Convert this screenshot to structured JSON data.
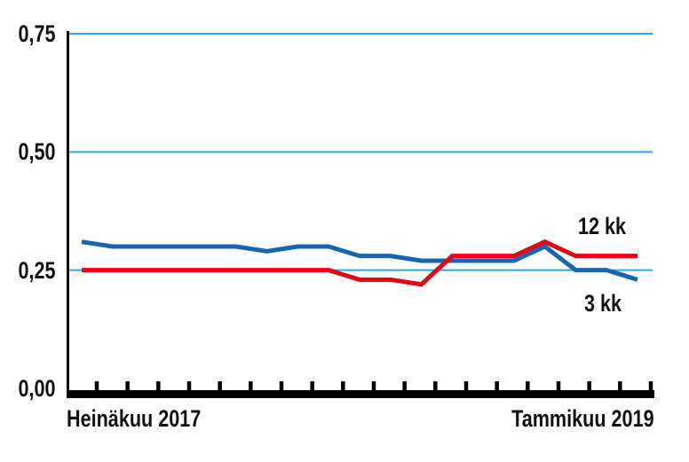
{
  "chart_data": {
    "type": "line",
    "title": "",
    "x": [
      "2017-07",
      "2017-08",
      "2017-09",
      "2017-10",
      "2017-11",
      "2017-12",
      "2018-01",
      "2018-02",
      "2018-03",
      "2018-04",
      "2018-05",
      "2018-06",
      "2018-07",
      "2018-08",
      "2018-09",
      "2018-10",
      "2018-11",
      "2018-12",
      "2019-01"
    ],
    "x_axis_labels": {
      "left": "Heinäkuu 2017",
      "right": "Tammikuu 2019"
    },
    "y_ticks": [
      0,
      0.25,
      0.5,
      0.75
    ],
    "y_tick_labels": [
      "0,00",
      "0,25",
      "0,50",
      "0,75"
    ],
    "ylim": [
      0,
      0.78
    ],
    "grid": "horizontal-only",
    "gridlines": {
      "values": [
        0.25,
        0.5,
        0.75
      ],
      "color": "#2fa9e3"
    },
    "axis_color": "#000000",
    "legend_position": "inline-right-annotations",
    "series": [
      {
        "name": "12 kk",
        "color": "#e30613",
        "values": [
          0.25,
          0.25,
          0.25,
          0.25,
          0.25,
          0.25,
          0.25,
          0.25,
          0.25,
          0.23,
          0.23,
          0.22,
          0.28,
          0.28,
          0.28,
          0.31,
          0.28,
          0.28,
          0.28
        ]
      },
      {
        "name": "3 kk",
        "color": "#1565b4",
        "values": [
          0.31,
          0.3,
          0.3,
          0.3,
          0.3,
          0.3,
          0.29,
          0.3,
          0.3,
          0.28,
          0.28,
          0.27,
          0.27,
          0.27,
          0.27,
          0.3,
          0.25,
          0.25,
          0.23
        ]
      }
    ]
  }
}
